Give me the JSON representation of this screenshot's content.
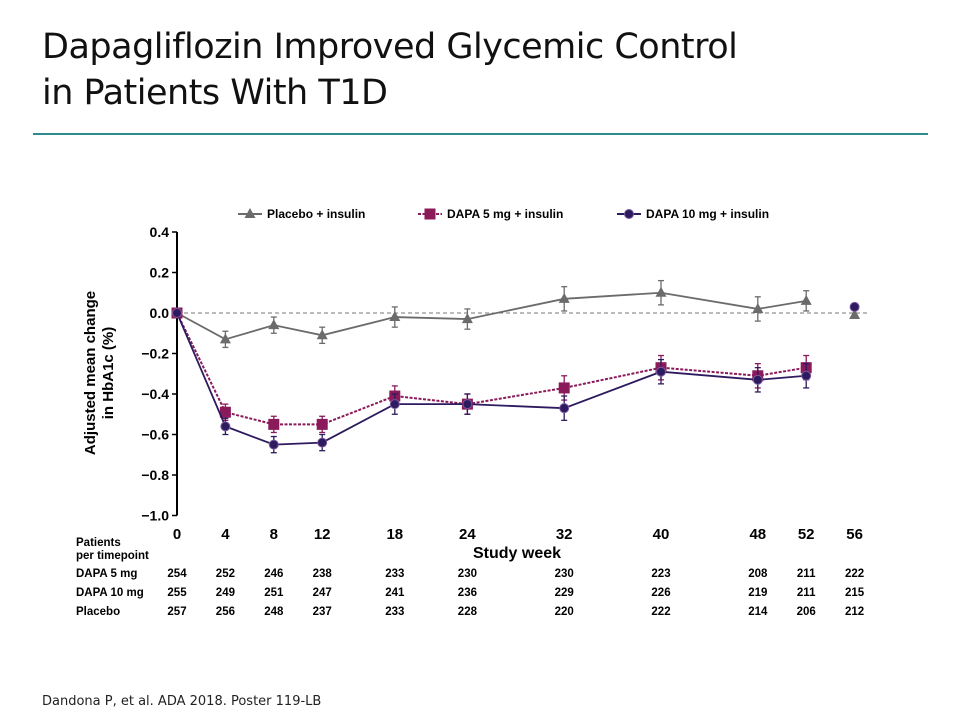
{
  "slide": {
    "title_line1": "Dapagliflozin Improved Glycemic Control",
    "title_line2": "in Patients With T1D",
    "citation": "Dandona P, et al. ADA 2018. Poster 119-LB",
    "accent_color": "#2e8b8f"
  },
  "chart_data": {
    "type": "line",
    "xlabel": "Study week",
    "ylabel_line1": "Adjusted mean change",
    "ylabel_line2": "in HbA1c (%)",
    "x": [
      0,
      4,
      8,
      12,
      18,
      24,
      32,
      40,
      48,
      52,
      56
    ],
    "x_tick_labels": [
      "0",
      "4",
      "8",
      "12",
      "18",
      "24",
      "32",
      "40",
      "48",
      "52",
      "56"
    ],
    "ylim": [
      -1.0,
      0.4
    ],
    "y_ticks": [
      0.4,
      0.2,
      0.0,
      -0.2,
      -0.4,
      -0.6,
      -0.8,
      -1.0
    ],
    "y_tick_labels": [
      "0.4",
      "0.2",
      "0.0",
      "−0.2",
      "−0.4",
      "−0.6",
      "−0.8",
      "−1.0"
    ],
    "reference_line": 0.0,
    "legend_position": "top",
    "grid": false,
    "series": [
      {
        "name": "Placebo + insulin",
        "marker": "triangle",
        "color": "#6b6b6b",
        "dashed": false,
        "values": [
          0,
          -0.13,
          -0.06,
          -0.11,
          -0.02,
          -0.03,
          0.07,
          0.1,
          0.02,
          0.06,
          -0.01
        ],
        "error": [
          0,
          0.04,
          0.04,
          0.04,
          0.05,
          0.05,
          0.06,
          0.06,
          0.06,
          0.05,
          0
        ]
      },
      {
        "name": "DAPA 5 mg + insulin",
        "marker": "square",
        "color": "#8b1a5a",
        "dashed": true,
        "values": [
          0,
          -0.49,
          -0.55,
          -0.55,
          -0.41,
          -0.45,
          -0.37,
          -0.27,
          -0.31,
          -0.27,
          null
        ],
        "error": [
          0,
          0.04,
          0.04,
          0.04,
          0.05,
          0.05,
          0.06,
          0.06,
          0.06,
          0.06,
          0
        ]
      },
      {
        "name": "DAPA 10 mg + insulin",
        "marker": "circle",
        "color": "#2e1a5e",
        "dashed": false,
        "values": [
          0,
          -0.56,
          -0.65,
          -0.64,
          -0.45,
          -0.45,
          -0.47,
          -0.29,
          -0.33,
          -0.31,
          0.03
        ],
        "error": [
          0,
          0.04,
          0.04,
          0.04,
          0.05,
          0.05,
          0.06,
          0.06,
          0.06,
          0.06,
          0
        ]
      }
    ],
    "patients_table": {
      "header_line1": "Patients",
      "header_line2": "per timepoint",
      "rows": [
        {
          "label": "DAPA 5 mg",
          "values": [
            "254",
            "252",
            "246",
            "238",
            "233",
            "230",
            "230",
            "223",
            "208",
            "211",
            "222"
          ]
        },
        {
          "label": "DAPA 10 mg",
          "values": [
            "255",
            "249",
            "251",
            "247",
            "241",
            "236",
            "229",
            "226",
            "219",
            "211",
            "215"
          ]
        },
        {
          "label": "Placebo",
          "values": [
            "257",
            "256",
            "248",
            "237",
            "233",
            "228",
            "220",
            "222",
            "214",
            "206",
            "212"
          ]
        }
      ]
    }
  }
}
